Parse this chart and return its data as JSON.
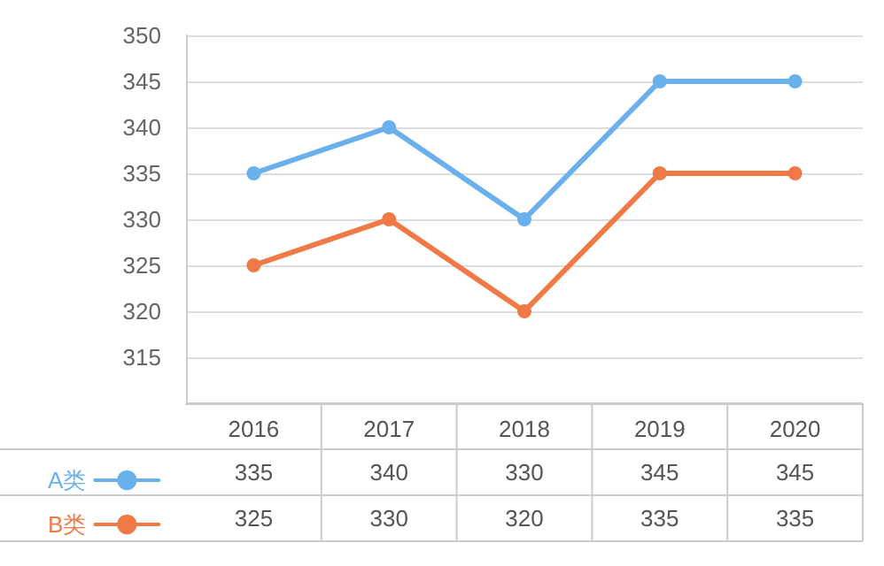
{
  "chart_data": {
    "type": "line",
    "categories": [
      "2016",
      "2017",
      "2018",
      "2019",
      "2020"
    ],
    "series": [
      {
        "name": "A类",
        "color": "#6ab0ec",
        "values": [
          335,
          340,
          330,
          345,
          345
        ]
      },
      {
        "name": "B类",
        "color": "#f07a46",
        "values": [
          325,
          330,
          320,
          335,
          335
        ]
      }
    ],
    "ylim": [
      310,
      350
    ],
    "yticks": [
      315,
      320,
      325,
      330,
      335,
      340,
      345,
      350
    ],
    "grid": "y",
    "legend": "bottom left",
    "marker": "circle",
    "line_style": "solid",
    "data_labels": true
  }
}
